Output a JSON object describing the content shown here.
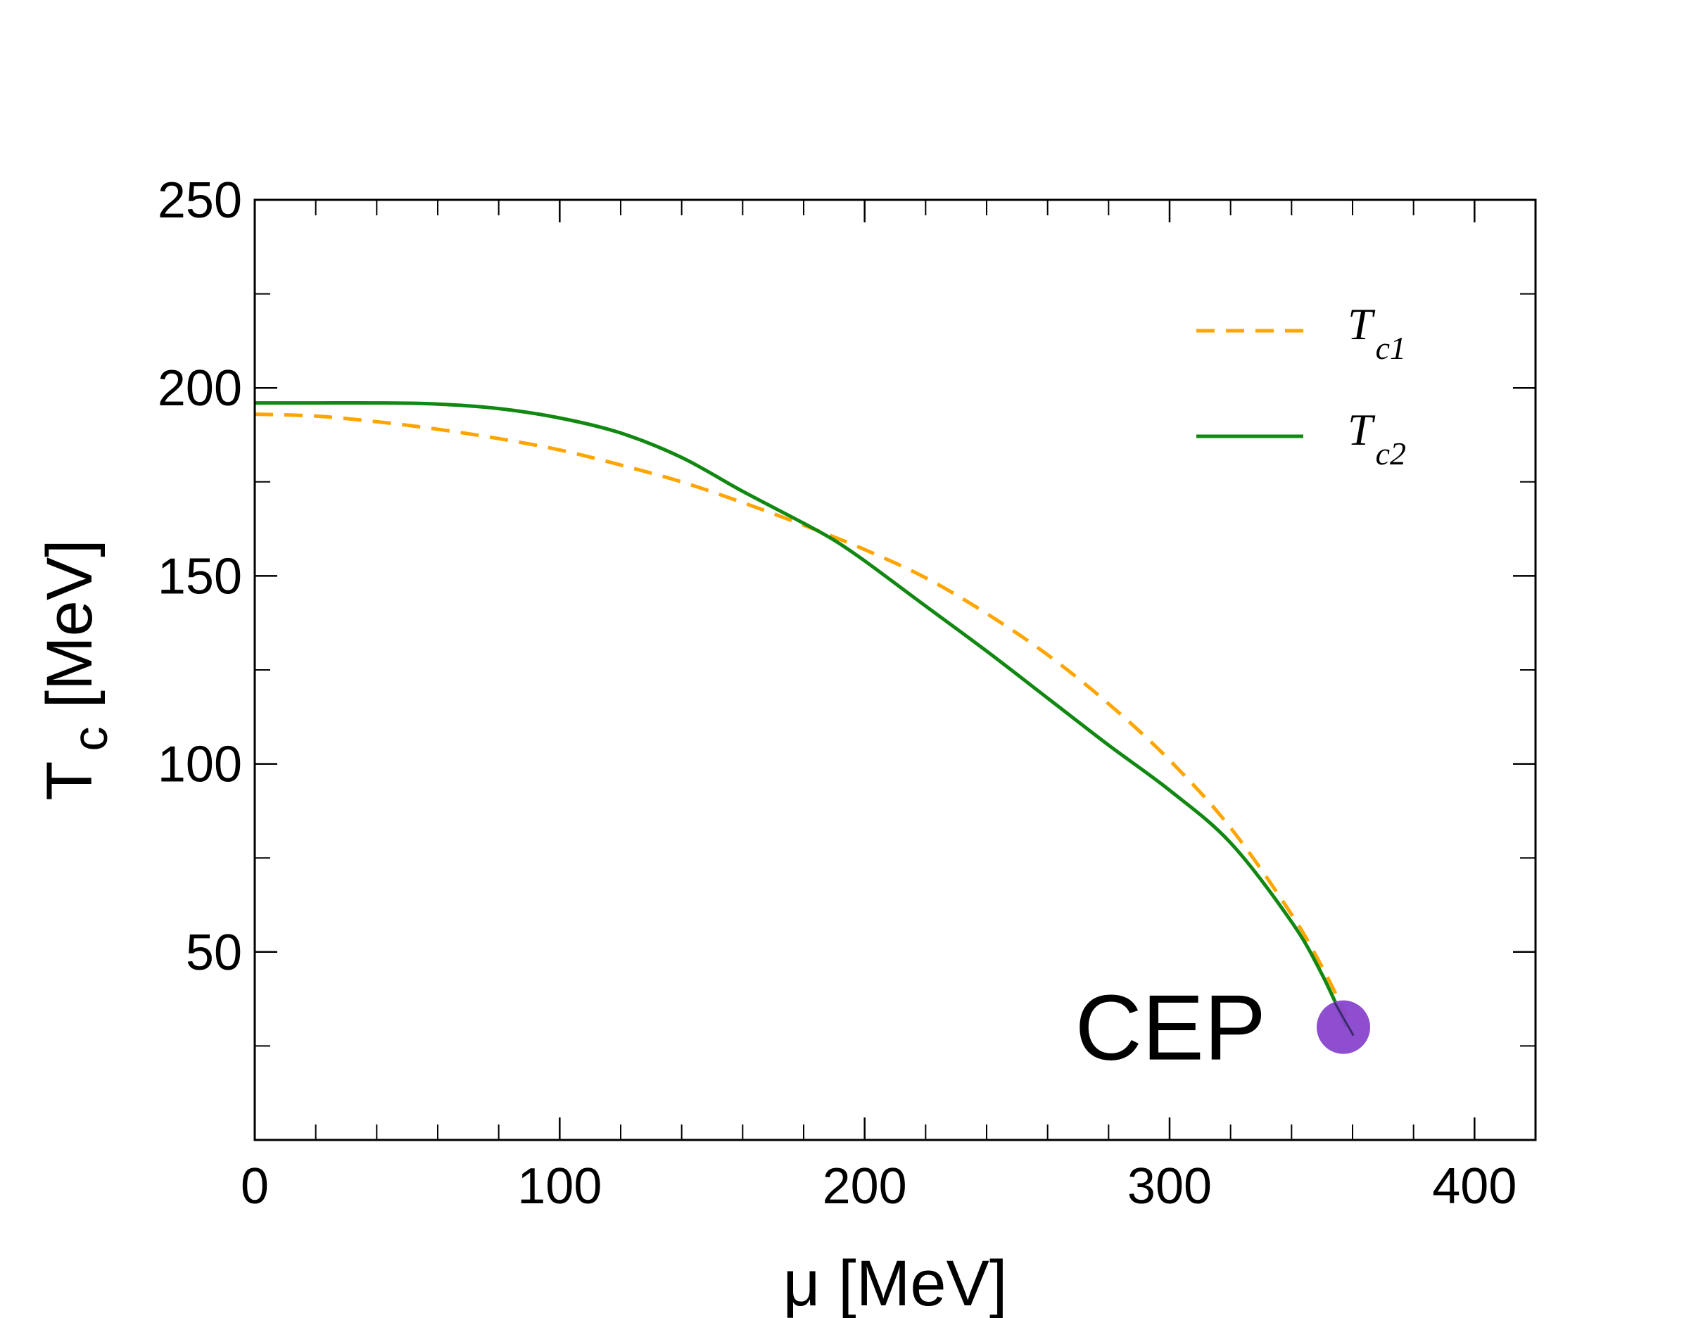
{
  "chart_data": {
    "type": "line",
    "title": "",
    "xlabel": "μ [MeV]",
    "ylabel_main": "T",
    "ylabel_sub": "c",
    "ylabel_unit": "[MeV]",
    "xlim": [
      0,
      420
    ],
    "ylim": [
      0,
      250
    ],
    "x_ticks": [
      0,
      100,
      200,
      300,
      400
    ],
    "y_ticks": [
      50,
      100,
      150,
      200,
      250
    ],
    "x_minor_step": 20,
    "y_minor_step": 25,
    "legend_location": "top-right",
    "series": [
      {
        "name": "T_c1",
        "label_main": "T",
        "label_sub": "c1",
        "style": "dashed",
        "color": "#FFA500",
        "x": [
          0,
          20,
          40,
          60,
          80,
          100,
          120,
          140,
          160,
          180,
          200,
          220,
          240,
          260,
          280,
          300,
          320,
          340,
          350,
          358
        ],
        "y": [
          193,
          192.5,
          191,
          189,
          186.5,
          183.5,
          179.5,
          175,
          169.5,
          163.5,
          157,
          149.5,
          140,
          129,
          116,
          101,
          83,
          60,
          46,
          33
        ]
      },
      {
        "name": "T_c2",
        "label_main": "T",
        "label_sub": "c2",
        "style": "solid",
        "color": "#118811",
        "x": [
          0,
          20,
          40,
          60,
          80,
          100,
          120,
          140,
          160,
          180,
          190,
          200,
          220,
          240,
          260,
          280,
          300,
          320,
          340,
          350,
          358
        ],
        "y": [
          196,
          196,
          196,
          195.7,
          194.5,
          192,
          188,
          181.5,
          172.5,
          164,
          159.5,
          154,
          142,
          130,
          117.5,
          105,
          93,
          79,
          58,
          44,
          30
        ]
      }
    ],
    "annotations": [
      {
        "text": "CEP",
        "x": 357,
        "y": 30,
        "marker_color": "#8844CC"
      }
    ]
  }
}
